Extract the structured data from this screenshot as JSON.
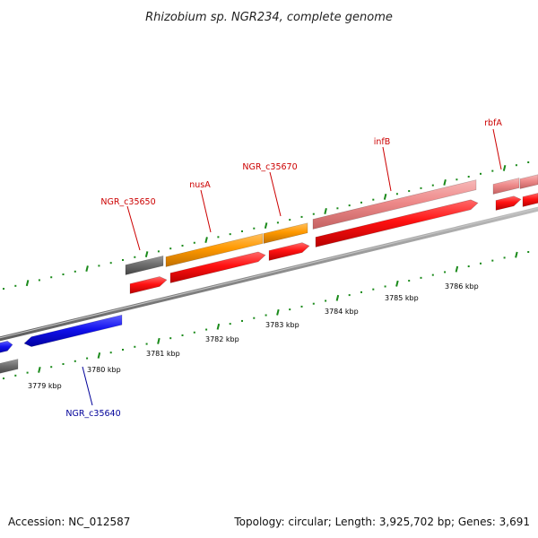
{
  "title": "Rhizobium sp. NGR234, complete genome",
  "footer": {
    "accession": "Accession: NC_012587",
    "summary": "Topology: circular; Length: 3,925,702 bp; Genes: 3,691"
  },
  "colors": {
    "backbone": "#8c8c8c",
    "ticks": "#1a8a1a",
    "red_gene": "#ff1111",
    "pink_gene": "#ee8a8a",
    "orange_gene": "#ff9900",
    "gray_gene": "#6e6e6e",
    "blue_gene": "#1111ee",
    "red_label": "#cc0000",
    "blue_label": "#000099"
  },
  "scale_labels": [
    "3779 kbp",
    "3780 kbp",
    "3781 kbp",
    "3782 kbp",
    "3783 kbp",
    "3784 kbp",
    "3785 kbp",
    "3786 kbp"
  ],
  "gene_labels": [
    {
      "text": "NGR_c35650",
      "color": "red"
    },
    {
      "text": "nusA",
      "color": "red"
    },
    {
      "text": "NGR_c35670",
      "color": "red"
    },
    {
      "text": "infB",
      "color": "red"
    },
    {
      "text": "rbfA",
      "color": "red"
    },
    {
      "text": "NGR_c35640",
      "color": "blue"
    }
  ]
}
